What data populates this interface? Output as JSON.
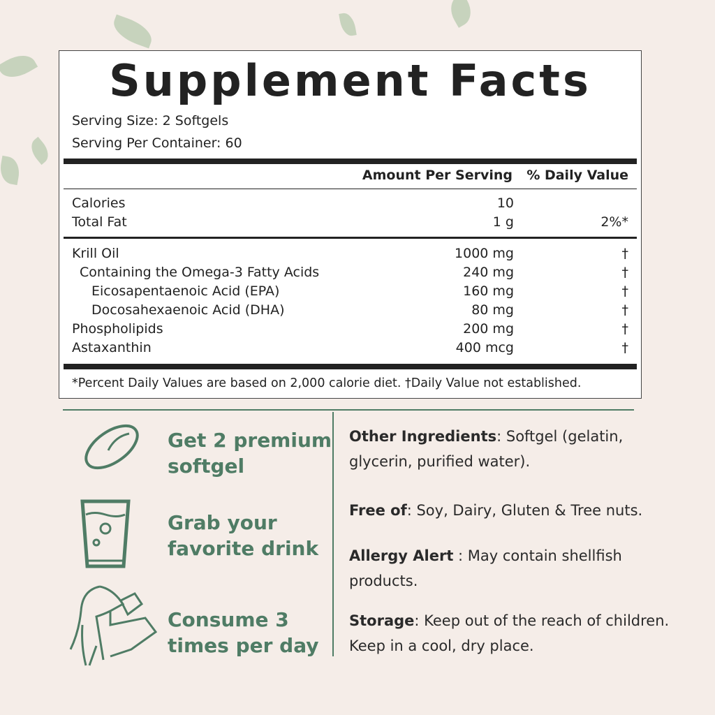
{
  "title": "Supplement Facts",
  "serving_size": "Serving Size: 2 Softgels",
  "servings_per_container": "Serving Per Container: 60",
  "headers": {
    "amount": "Amount Per Serving",
    "dv": "% Daily Value"
  },
  "basic_rows": [
    {
      "name": "Calories",
      "amount": "10",
      "dv": ""
    },
    {
      "name": "Total Fat",
      "amount": "1 g",
      "dv": "2%*"
    }
  ],
  "ingredient_rows": [
    {
      "name": "Krill Oil",
      "amount": "1000 mg",
      "dv": "†"
    },
    {
      "name": "Containing the Omega-3 Fatty Acids",
      "amount": "240 mg",
      "dv": "†"
    },
    {
      "name": "Eicosapentaenoic Acid (EPA)",
      "amount": "160 mg",
      "dv": "†"
    },
    {
      "name": "Docosahexaenoic Acid (DHA)",
      "amount": "80 mg",
      "dv": "†"
    },
    {
      "name": "Phospholipids",
      "amount": "200 mg",
      "dv": "†"
    },
    {
      "name": "Astaxanthin",
      "amount": "400 mcg",
      "dv": "†"
    }
  ],
  "footnote": "*Percent Daily Values are based on 2,000 calorie diet. †Daily Value not established.",
  "steps": [
    {
      "icon": "softgel-icon",
      "line1": "Get 2 premium",
      "line2": "softgel"
    },
    {
      "icon": "glass-icon",
      "line1": "Grab your",
      "line2": "favorite drink"
    },
    {
      "icon": "woman-drinking-icon",
      "line1": "Consume 3",
      "line2": "times per day"
    }
  ],
  "info": [
    {
      "label": "Other Ingredients",
      "text": ": Softgel (gelatin, glycerin, purified water)."
    },
    {
      "label": "Free of",
      "text": ": Soy, Dairy, Gluten & Tree nuts."
    },
    {
      "label": "Allergy Alert",
      "text": " : May contain shellfish products."
    },
    {
      "label": "Storage",
      "text": ": Keep out of the reach of children. Keep in a cool, dry place."
    }
  ],
  "colors": {
    "accent": "#4f7c65",
    "background": "#f5ede8"
  }
}
